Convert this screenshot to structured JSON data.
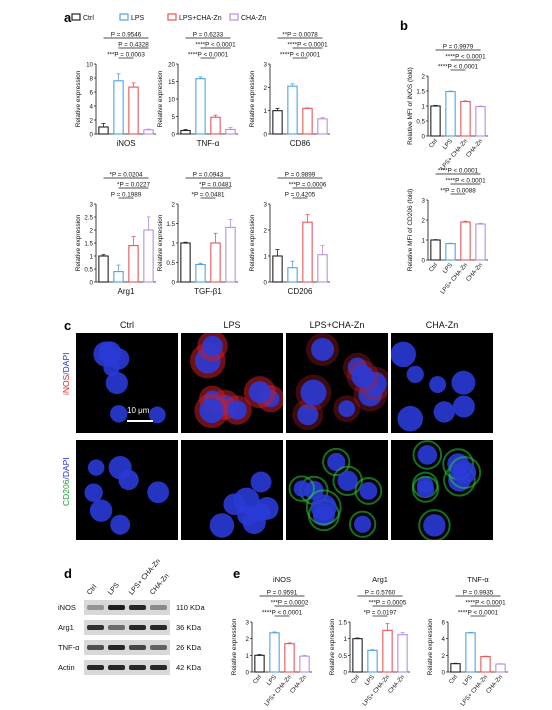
{
  "panels": {
    "a": "a",
    "b": "b",
    "c": "c",
    "d": "d",
    "e": "e"
  },
  "legend": [
    {
      "label": "Ctrl",
      "color": "#222222"
    },
    {
      "label": "LPS",
      "color": "#4fa3e0"
    },
    {
      "label": "LPS+CHA-Zn",
      "color": "#e8555a"
    },
    {
      "label": "CHA-Zn",
      "color": "#b88ee0"
    }
  ],
  "colors": {
    "ctrl": "#222222",
    "lps": "#4fa3e0",
    "lpschazn": "#e8555a",
    "chazn": "#b88ee0"
  },
  "chart_data": [
    {
      "id": "a-iNOS",
      "type": "bar",
      "xlabel": "iNOS",
      "ylabel": "Relative expression",
      "ylim": [
        0,
        10
      ],
      "yticks": [
        0,
        2,
        4,
        6,
        8,
        10
      ],
      "values": [
        1.0,
        7.6,
        6.7,
        0.6
      ],
      "errors": [
        0.5,
        1.0,
        0.6,
        0.1
      ],
      "stats": [
        "P = 0.9546",
        "P = 0.4328",
        "***P = 0.0003"
      ]
    },
    {
      "id": "a-TNF",
      "type": "bar",
      "xlabel": "TNF-α",
      "ylabel": "Relative expression",
      "ylim": [
        0,
        20
      ],
      "yticks": [
        0,
        5,
        10,
        15,
        20
      ],
      "values": [
        1.0,
        15.8,
        4.8,
        1.3
      ],
      "errors": [
        0.3,
        0.5,
        0.6,
        0.6
      ],
      "stats": [
        "P = 0.6233",
        "****P < 0.0001",
        "****P < 0.0001"
      ]
    },
    {
      "id": "a-CD86",
      "type": "bar",
      "xlabel": "CD86",
      "ylabel": "Relative expression",
      "ylim": [
        0,
        3
      ],
      "yticks": [
        0,
        1,
        2,
        3
      ],
      "values": [
        1.0,
        2.05,
        1.1,
        0.65
      ],
      "errors": [
        0.1,
        0.1,
        0.02,
        0.05
      ],
      "stats": [
        "**P = 0.0078",
        "****P < 0.0001",
        "****P < 0.0001"
      ]
    },
    {
      "id": "a-Arg1",
      "type": "bar",
      "xlabel": "Arg1",
      "ylabel": "Relative expression",
      "ylim": [
        0,
        3
      ],
      "yticks": [
        0,
        0.5,
        1,
        1.5,
        2,
        2.5,
        3
      ],
      "values": [
        1.0,
        0.4,
        1.4,
        2.0
      ],
      "errors": [
        0.05,
        0.25,
        0.35,
        0.5
      ],
      "stats": [
        "*P = 0.0204",
        "*P = 0.0227",
        "P = 0.1989"
      ]
    },
    {
      "id": "a-TGF",
      "type": "bar",
      "xlabel": "TGF-β1",
      "ylabel": "Relative expression",
      "ylim": [
        0,
        2
      ],
      "yticks": [
        0,
        0.5,
        1,
        1.5,
        2
      ],
      "values": [
        1.0,
        0.45,
        1.0,
        1.4
      ],
      "errors": [
        0.02,
        0.03,
        0.25,
        0.2
      ],
      "stats": [
        "P = 0.0943",
        "*P = 0.0481",
        "*P = 0.0481"
      ]
    },
    {
      "id": "a-CD206",
      "type": "bar",
      "xlabel": "CD206",
      "ylabel": "Relative expression",
      "ylim": [
        0,
        3
      ],
      "yticks": [
        0,
        1,
        2,
        3
      ],
      "values": [
        1.0,
        0.55,
        2.3,
        1.05
      ],
      "errors": [
        0.25,
        0.25,
        0.3,
        0.35
      ],
      "stats": [
        "P = 0.9899",
        "***P = 0.0006",
        "P = 0.4205"
      ]
    },
    {
      "id": "b-iNOS",
      "type": "bar",
      "xlabel": "",
      "ylabel": "Relative MFI of iNOS (fold)",
      "ylim": [
        0,
        2
      ],
      "yticks": [
        0,
        0.5,
        1,
        1.5,
        2
      ],
      "values": [
        1.0,
        1.48,
        1.15,
        0.98
      ],
      "errors": [
        0.02,
        0.02,
        0.02,
        0.02
      ],
      "categories": [
        "Ctrl",
        "LPS",
        "LPS+ CHA-Zn",
        "CHA-Zn"
      ],
      "stats": [
        "P = 0.9979",
        "****P < 0.0001",
        "****P < 0.0001"
      ]
    },
    {
      "id": "b-CD206",
      "type": "bar",
      "xlabel": "",
      "ylabel": "Relative MFI of CD206 (fold)",
      "ylim": [
        0,
        3
      ],
      "yticks": [
        0,
        1,
        2,
        3
      ],
      "values": [
        1.0,
        0.82,
        1.9,
        1.8
      ],
      "errors": [
        0.02,
        0.02,
        0.04,
        0.04
      ],
      "categories": [
        "Ctrl",
        "LPS",
        "LPS+ CHA-Zn",
        "CHA-Zn"
      ],
      "stats": [
        "****P < 0.0001",
        "****P < 0.0001",
        "**P = 0.0088"
      ]
    },
    {
      "id": "e-iNOS",
      "type": "bar",
      "title": "iNOS",
      "ylabel": "Relative expression",
      "ylim": [
        0,
        3
      ],
      "yticks": [
        0,
        1,
        2,
        3
      ],
      "values": [
        1.0,
        2.35,
        1.7,
        0.95
      ],
      "errors": [
        0.05,
        0.05,
        0.05,
        0.05
      ],
      "categories": [
        "Ctrl",
        "LPS",
        "LPS+ CHA-Zn",
        "CHA-Zn"
      ],
      "stats": [
        "P = 0.9591",
        "***P = 0.0002",
        "****P < 0.0001"
      ]
    },
    {
      "id": "e-Arg1",
      "type": "bar",
      "title": "Arg1",
      "ylabel": "Relative expression",
      "ylim": [
        0,
        1.5
      ],
      "yticks": [
        0,
        0.5,
        1.0,
        1.5
      ],
      "values": [
        1.0,
        0.65,
        1.25,
        1.12
      ],
      "errors": [
        0.02,
        0.02,
        0.2,
        0.06
      ],
      "categories": [
        "Ctrl",
        "LPS",
        "LPS+ CHA-Zn",
        "CHA-Zn"
      ],
      "stats": [
        "P = 0.5760",
        "***P = 0.0005",
        "*P = 0.0197"
      ]
    },
    {
      "id": "e-TNF",
      "type": "bar",
      "title": "TNF-α",
      "ylabel": "Relative expression",
      "ylim": [
        0,
        6
      ],
      "yticks": [
        0,
        2,
        4,
        6
      ],
      "values": [
        1.0,
        4.7,
        1.85,
        0.95
      ],
      "errors": [
        0.05,
        0.05,
        0.05,
        0.05
      ],
      "categories": [
        "Ctrl",
        "LPS",
        "LPS+ CHA-Zn",
        "CHA-Zn"
      ],
      "stats": [
        "P = 0.9935",
        "****P < 0.0001",
        "****P < 0.0001"
      ]
    }
  ],
  "microscopy": {
    "columns": [
      "Ctrl",
      "LPS",
      "LPS+CHA-Zn",
      "CHA-Zn"
    ],
    "row1_label_a": "iNOS",
    "row1_label_b": "/DAPI",
    "row2_label_a": "CD206",
    "row2_label_b": "/DAPI",
    "scale": "10 μm"
  },
  "western": {
    "lanes": [
      "Ctrl",
      "LPS",
      "LPS+ CHA-Zn",
      "CHA-Zn"
    ],
    "rows": [
      {
        "name": "iNOS",
        "kda": "110 KDa"
      },
      {
        "name": "Arg1",
        "kda": "36 KDa"
      },
      {
        "name": "TNF-α",
        "kda": "26 KDa"
      },
      {
        "name": "Actin",
        "kda": "42 KDa"
      }
    ]
  }
}
